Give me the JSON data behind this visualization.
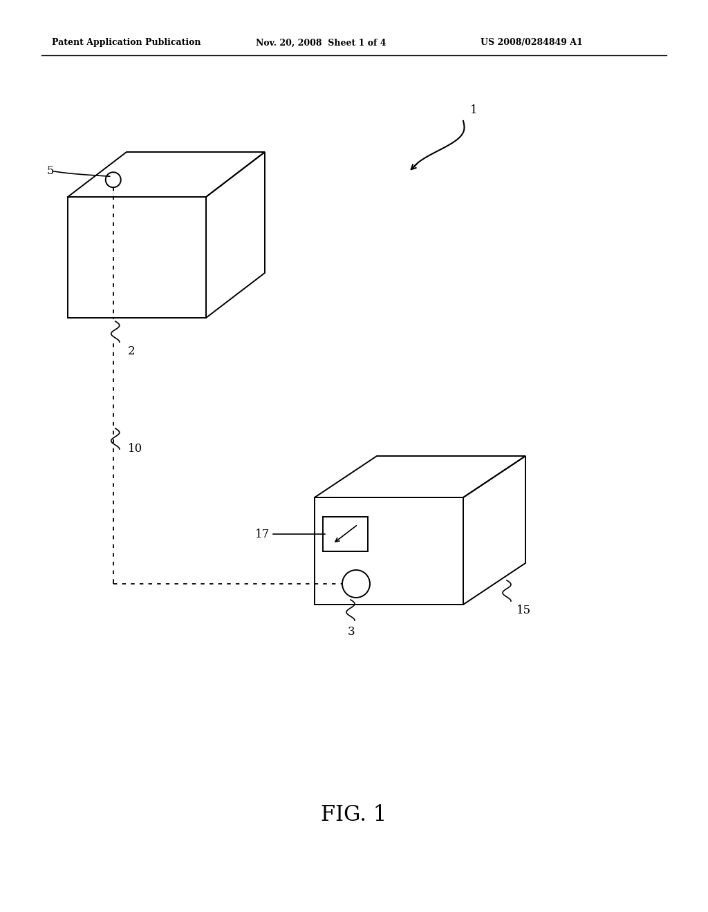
{
  "bg_color": "#ffffff",
  "header_left": "Patent Application Publication",
  "header_mid": "Nov. 20, 2008  Sheet 1 of 4",
  "header_right": "US 2008/0284849 A1",
  "figure_label": "FIG. 1",
  "label_1": "1",
  "label_2": "2",
  "label_3": "3",
  "label_5": "5",
  "label_10": "10",
  "label_15": "15",
  "label_17": "17",
  "line_color": "#000000",
  "lw": 1.4
}
